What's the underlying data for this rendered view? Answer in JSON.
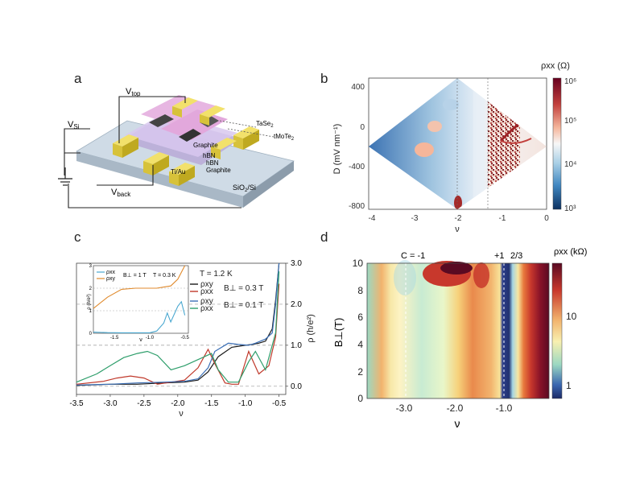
{
  "panel_labels": {
    "a": "a",
    "b": "b",
    "c": "c",
    "d": "d"
  },
  "panel_a": {
    "labels": {
      "v_top": "V",
      "v_top_sub": "top",
      "v_si": "V",
      "v_si_sub": "Si",
      "v_back": "V",
      "v_back_sub": "back",
      "tase2": "TaSe",
      "tase2_sub": "2",
      "tmote2": "tMoTe",
      "tmote2_sub": "2",
      "graphite_top": "Graphite",
      "hbn_top": "hBN",
      "hbn_bottom": "hBN",
      "graphite_bottom": "Graphite",
      "tiau": "Ti/Au",
      "sio2si": "SiO",
      "sio2si_sub": "2",
      "sio2si_tail": "/Si"
    }
  },
  "chart_data": [
    {
      "panel": "b",
      "type": "heatmap",
      "xlabel": "ν",
      "ylabel": "D (mV nm⁻¹)",
      "xlim": [
        -4.2,
        0
      ],
      "ylim": [
        -850,
        500
      ],
      "xticks": [
        -4,
        -3,
        -2,
        -1,
        0
      ],
      "yticks": [
        400,
        0,
        -400,
        -800
      ],
      "colorbar_label": "ρxx (Ω)",
      "colorbar_ticks": [
        "10⁶",
        "10⁵",
        "10⁴",
        "10³"
      ],
      "colormap": "diverging blue-white-red, log scale",
      "region": "diamond with vertices (ν=-4.2,D=-220), (ν=-2,D=500), (ν=0,D=-200), (ν=-2,D=-850)",
      "features": [
        {
          "label": "high-resistance noisy band",
          "nu_range": [
            -1.1,
            -0.35
          ]
        },
        {
          "label": "resistive spot",
          "nu": -2.0,
          "D": -820
        },
        {
          "label": "resistive spot",
          "nu": -3.0,
          "D": -120
        },
        {
          "label": "resistive spot",
          "nu": -2.85,
          "D": 20
        }
      ]
    },
    {
      "panel": "c",
      "type": "line",
      "xlabel": "ν",
      "ylabel_right": "ρ (h/e²)",
      "xlim": [
        -3.5,
        -0.4
      ],
      "ylim": [
        -0.2,
        3.0
      ],
      "xticks": [
        -3.5,
        -3.0,
        -2.5,
        -2.0,
        -1.5,
        -1.0,
        -0.5
      ],
      "yticks": [
        0.0,
        1.0,
        2.0,
        3.0
      ],
      "legend": {
        "title": "T = 1.2 K",
        "groups": [
          {
            "field": "B⊥ = 0.3 T",
            "entries": [
              "ρxy",
              "ρxx"
            ]
          },
          {
            "field": "B⊥ = 0.1 T",
            "entries": [
              "ρxy",
              "ρxx"
            ]
          }
        ]
      },
      "series": [
        {
          "name": "ρxy (B⊥ = 0.3 T)",
          "color": "#1a1a1a",
          "x": [
            -3.5,
            -3.0,
            -2.6,
            -2.2,
            -1.9,
            -1.7,
            -1.55,
            -1.4,
            -1.2,
            -1.0,
            -0.9,
            -0.8,
            -0.7,
            -0.6,
            -0.55,
            -0.5
          ],
          "y": [
            0.02,
            0.05,
            0.05,
            0.08,
            0.1,
            0.15,
            0.35,
            0.72,
            0.95,
            1.0,
            1.02,
            1.05,
            1.1,
            1.4,
            2.1,
            3.0
          ]
        },
        {
          "name": "ρxx (B⊥ = 0.3 T)",
          "color": "#c0392b",
          "x": [
            -3.5,
            -3.1,
            -2.9,
            -2.7,
            -2.5,
            -2.3,
            -2.1,
            -1.9,
            -1.7,
            -1.55,
            -1.45,
            -1.3,
            -1.2,
            -1.1,
            -0.95,
            -0.8,
            -0.65,
            -0.55,
            -0.5
          ],
          "y": [
            0.05,
            0.12,
            0.2,
            0.25,
            0.2,
            0.05,
            0.1,
            0.15,
            0.45,
            0.9,
            0.55,
            0.08,
            0.05,
            0.05,
            0.85,
            0.3,
            0.5,
            1.2,
            2.5
          ]
        },
        {
          "name": "ρxy (B⊥ = 0.1 T)",
          "color": "#3b6fb6",
          "x": [
            -3.5,
            -3.0,
            -2.6,
            -2.2,
            -1.9,
            -1.7,
            -1.55,
            -1.45,
            -1.25,
            -1.1,
            -0.95,
            -0.85,
            -0.7,
            -0.6,
            -0.55,
            -0.5
          ],
          "y": [
            0.03,
            0.05,
            0.08,
            0.1,
            0.12,
            0.18,
            0.45,
            0.85,
            1.05,
            1.02,
            1.0,
            1.05,
            1.15,
            1.3,
            2.0,
            3.0
          ]
        },
        {
          "name": "ρxx (B⊥ = 0.1 T)",
          "color": "#2e9e6b",
          "x": [
            -3.5,
            -3.2,
            -3.0,
            -2.8,
            -2.6,
            -2.45,
            -2.3,
            -2.1,
            -1.9,
            -1.7,
            -1.5,
            -1.4,
            -1.25,
            -1.1,
            -0.95,
            -0.85,
            -0.7,
            -0.55,
            -0.5
          ],
          "y": [
            0.1,
            0.3,
            0.5,
            0.7,
            0.8,
            0.85,
            0.75,
            0.4,
            0.5,
            0.65,
            0.8,
            0.4,
            0.1,
            0.1,
            0.6,
            0.85,
            0.4,
            1.3,
            2.8
          ]
        }
      ],
      "inset": {
        "xlabel": "ν",
        "ylabel": "ρ (h/e²)",
        "xlim": [
          -1.8,
          -0.45
        ],
        "ylim": [
          0,
          3
        ],
        "xticks": [
          -1.5,
          -1.0,
          -0.5
        ],
        "yticks": [
          0,
          1,
          2,
          3
        ],
        "legend": {
          "field": "B⊥ = 1 T",
          "temperature": "T = 0.3 K",
          "entries": [
            "ρxx",
            "ρxy"
          ]
        },
        "series": [
          {
            "name": "ρxy",
            "color": "#e08a2c",
            "x": [
              -1.8,
              -1.6,
              -1.4,
              -1.2,
              -1.0,
              -0.9,
              -0.8,
              -0.7,
              -0.6,
              -0.5
            ],
            "y": [
              1.1,
              1.6,
              1.95,
              2.0,
              2.0,
              2.0,
              2.05,
              2.1,
              2.4,
              3.0
            ]
          },
          {
            "name": "ρxx",
            "color": "#4aa8d0",
            "x": [
              -1.8,
              -1.6,
              -1.4,
              -1.2,
              -1.0,
              -0.9,
              -0.8,
              -0.75,
              -0.7,
              -0.6,
              -0.55,
              -0.5
            ],
            "y": [
              0.05,
              0.03,
              0.02,
              0.02,
              0.02,
              0.1,
              0.45,
              0.9,
              0.5,
              1.2,
              1.4,
              0.8
            ]
          }
        ]
      }
    },
    {
      "panel": "d",
      "type": "heatmap",
      "xlabel": "ν",
      "ylabel": "B⊥(T)",
      "xlim": [
        -3.6,
        -0.2
      ],
      "ylim": [
        0,
        10
      ],
      "xticks": [
        "-3.0",
        "-2.0",
        "-1.0"
      ],
      "yticks": [
        0,
        2,
        4,
        6,
        8,
        10
      ],
      "colorbar_label": "ρxx (kΩ)",
      "colorbar_ticks": [
        "10",
        "1"
      ],
      "colormap": "diverging blue-yellow-red, log scale",
      "annotations": [
        "C = -1",
        "+1",
        "2/3"
      ],
      "dashed_lines_at_nu": [
        -3.0,
        -1.0
      ]
    }
  ]
}
